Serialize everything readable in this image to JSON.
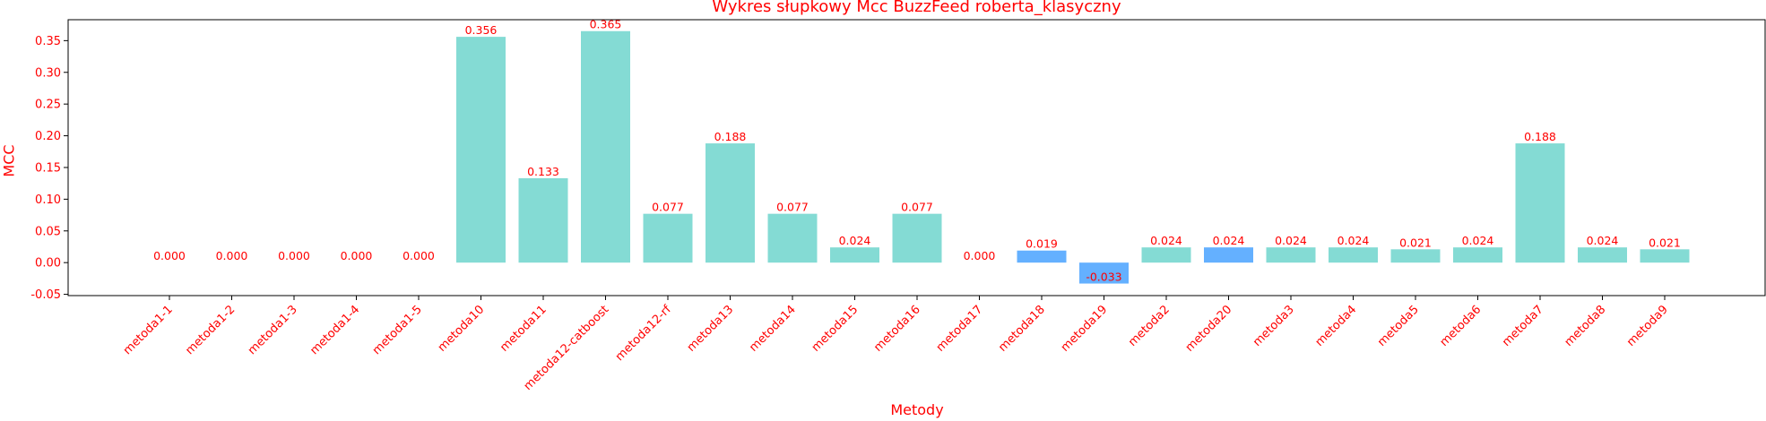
{
  "chart_data": {
    "type": "bar",
    "title": "Wykres słupkowy Mcc BuzzFeed roberta_klasyczny",
    "xlabel": "Metody",
    "ylabel": "MCC",
    "ylim": [
      -0.052,
      0.383
    ],
    "yticks": [
      "-0.05",
      "0.00",
      "0.05",
      "0.10",
      "0.15",
      "0.20",
      "0.25",
      "0.30",
      "0.35"
    ],
    "grid": false,
    "categories": [
      "metoda1-1",
      "metoda1-2",
      "metoda1-3",
      "metoda1-4",
      "metoda1-5",
      "metoda10",
      "metoda11",
      "metoda12-catboost",
      "metoda12-rf",
      "metoda13",
      "metoda14",
      "metoda15",
      "metoda16",
      "metoda17",
      "metoda18",
      "metoda19",
      "metoda2",
      "metoda20",
      "metoda3",
      "metoda4",
      "metoda5",
      "metoda6",
      "metoda7",
      "metoda8",
      "metoda9"
    ],
    "values": [
      0.0,
      0.0,
      0.0,
      0.0,
      0.0,
      0.356,
      0.133,
      0.365,
      0.077,
      0.188,
      0.077,
      0.024,
      0.077,
      0.0,
      0.019,
      -0.033,
      0.024,
      0.024,
      0.024,
      0.024,
      0.021,
      0.024,
      0.188,
      0.024,
      0.021
    ],
    "value_labels": [
      "0.000",
      "0.000",
      "0.000",
      "0.000",
      "0.000",
      "0.356",
      "0.133",
      "0.365",
      "0.077",
      "0.188",
      "0.077",
      "0.024",
      "0.077",
      "0.000",
      "0.019",
      "-0.033",
      "0.024",
      "0.024",
      "0.024",
      "0.024",
      "0.021",
      "0.024",
      "0.188",
      "0.024",
      "0.021"
    ],
    "bar_colors": [
      "#84dbd4",
      "#84dbd4",
      "#84dbd4",
      "#84dbd4",
      "#84dbd4",
      "#84dbd4",
      "#84dbd4",
      "#84dbd4",
      "#84dbd4",
      "#84dbd4",
      "#84dbd4",
      "#84dbd4",
      "#84dbd4",
      "#84dbd4",
      "#64b0ff",
      "#64b0ff",
      "#84dbd4",
      "#64b0ff",
      "#84dbd4",
      "#84dbd4",
      "#84dbd4",
      "#84dbd4",
      "#84dbd4",
      "#84dbd4",
      "#84dbd4"
    ],
    "text_color": "#ff0000"
  }
}
